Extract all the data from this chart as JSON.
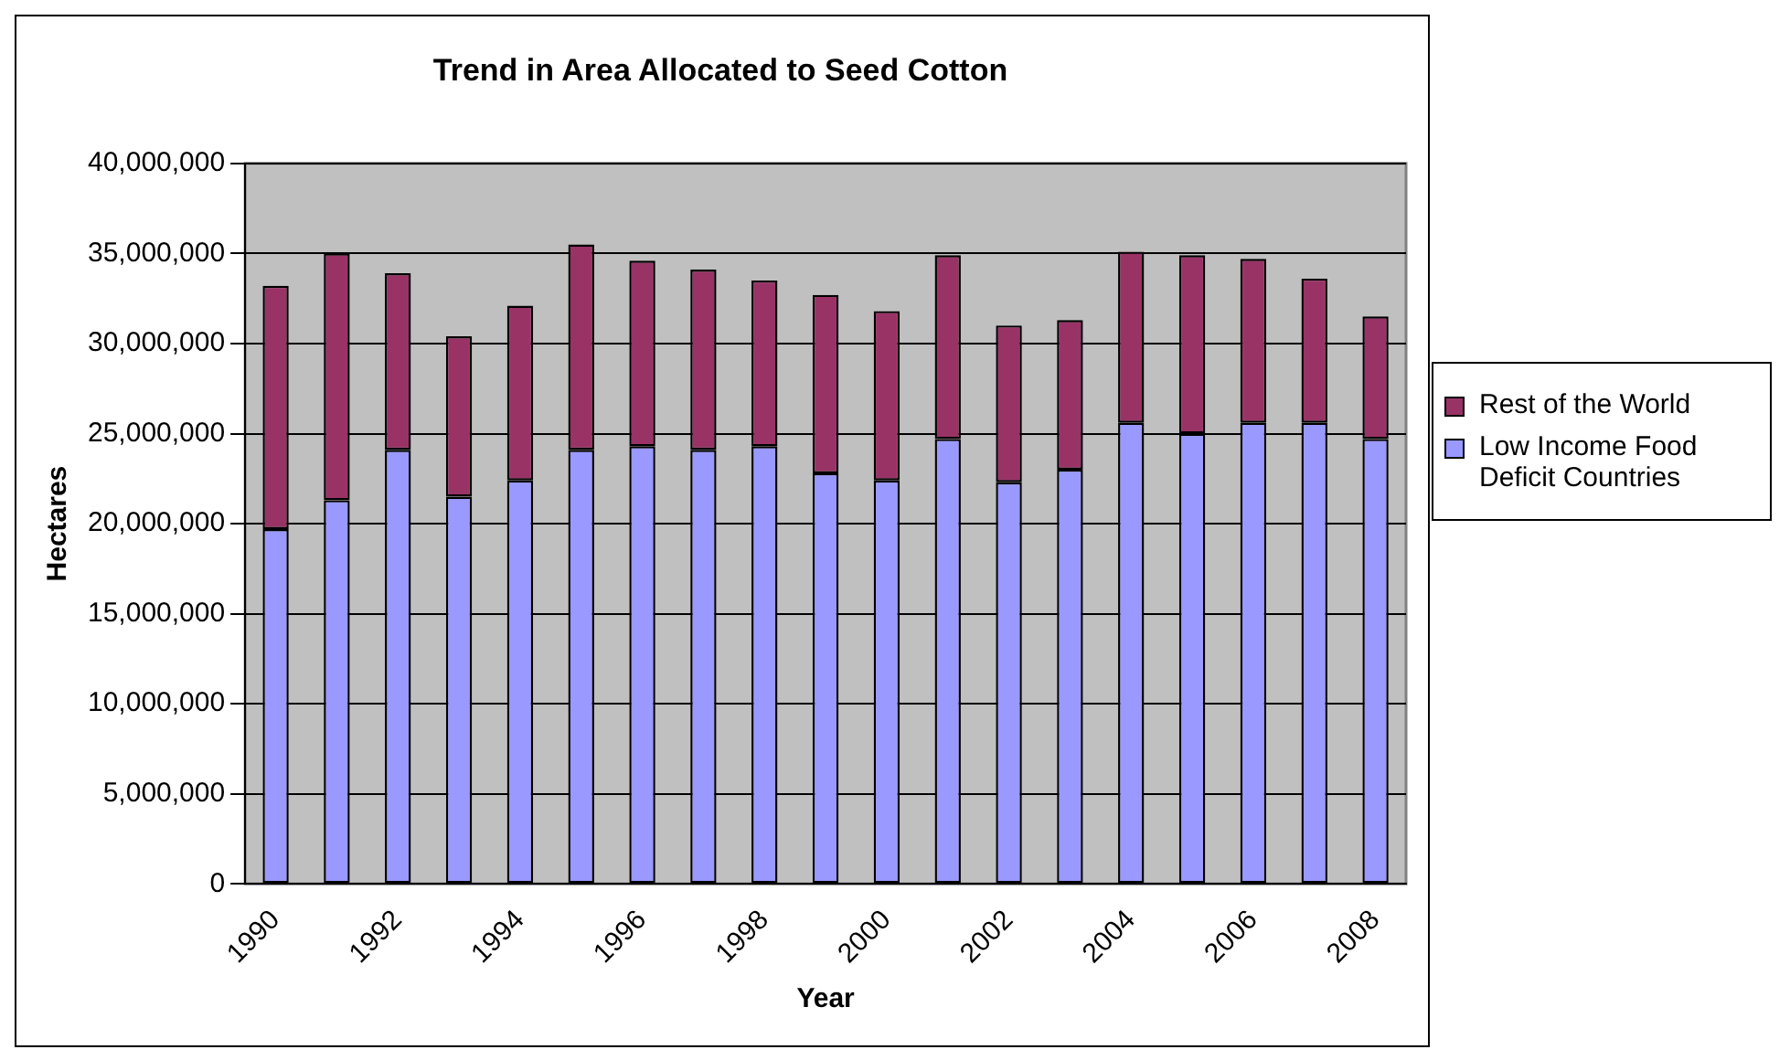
{
  "chart_data": {
    "type": "bar",
    "title": "Trend in Area Allocated to Seed Cotton",
    "xlabel": "Year",
    "ylabel": "Hectares",
    "categories": [
      "1990",
      null,
      "1992",
      null,
      "1994",
      null,
      "1996",
      null,
      "1998",
      null,
      "2000",
      null,
      "2002",
      null,
      "2004",
      null,
      "2006",
      null,
      "2008"
    ],
    "stacked": true,
    "series": [
      {
        "name": "Low Income Food Deficit Countries",
        "color": "#9999ff",
        "values": [
          19700000,
          21300000,
          24100000,
          21500000,
          22400000,
          24100000,
          24300000,
          24100000,
          24300000,
          22800000,
          22400000,
          24700000,
          22300000,
          23000000,
          25600000,
          25000000,
          25600000,
          25600000,
          24700000
        ]
      },
      {
        "name": "Rest of the World",
        "color": "#993366",
        "values": [
          13500000,
          13700000,
          9800000,
          8900000,
          9700000,
          11400000,
          10300000,
          10000000,
          9200000,
          9900000,
          9400000,
          10200000,
          8700000,
          8300000,
          9500000,
          9900000,
          9100000,
          8000000,
          6800000
        ]
      }
    ],
    "ylim": [
      0,
      40000000
    ],
    "yticks": [
      0,
      {
        "value": 5000000,
        "label": "5,000,000"
      },
      {
        "value": 10000000,
        "label": "10,000,000"
      },
      {
        "value": 15000000,
        "label": "15,000,000"
      },
      {
        "value": 20000000,
        "label": "20,000,000"
      },
      {
        "value": 25000000,
        "label": "25,000,000"
      },
      {
        "value": 30000000,
        "label": "30,000,000"
      },
      {
        "value": 35000000,
        "label": "35,000,000"
      },
      {
        "value": 40000000,
        "label": "40,000,000"
      }
    ],
    "grid": "y",
    "legend": "right"
  }
}
